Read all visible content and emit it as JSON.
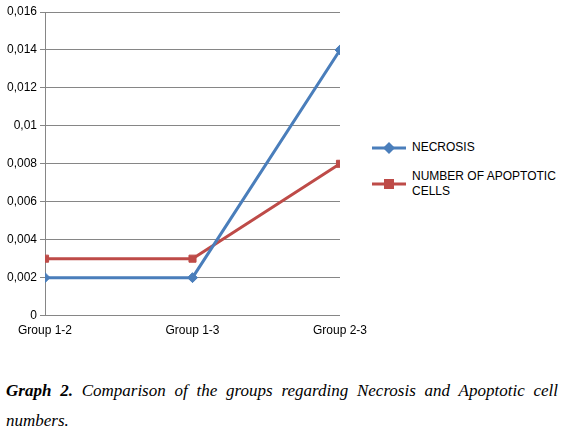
{
  "chart_data": {
    "type": "line",
    "categories": [
      "Group 1-2",
      "Group 1-3",
      "Group 2-3"
    ],
    "series": [
      {
        "name": "NECROSIS",
        "color": "#4a7ebb",
        "marker": "diamond",
        "values": [
          0.002,
          0.002,
          0.014
        ]
      },
      {
        "name": "NUMBER OF APOPTOTIC CELLS",
        "color": "#be4b48",
        "marker": "square",
        "values": [
          0.003,
          0.003,
          0.008
        ]
      }
    ],
    "ylim": [
      0,
      0.016
    ],
    "yticks": [
      0,
      {
        "value": 0.002,
        "label": "0,002"
      },
      {
        "value": 0.004,
        "label": "0,004"
      },
      {
        "value": 0.006,
        "label": "0,006"
      },
      {
        "value": 0.008,
        "label": "0,008"
      },
      {
        "value": 0.01,
        "label": "0,01"
      },
      {
        "value": 0.012,
        "label": "0,012"
      },
      {
        "value": 0.014,
        "label": "0,014"
      },
      {
        "value": 0.016,
        "label": "0,016"
      }
    ],
    "grid": true,
    "legend": "right",
    "caption": {
      "label": "Graph 2.",
      "text": "Comparison of the groups regarding Necrosis and Apoptotic cell numbers."
    }
  }
}
